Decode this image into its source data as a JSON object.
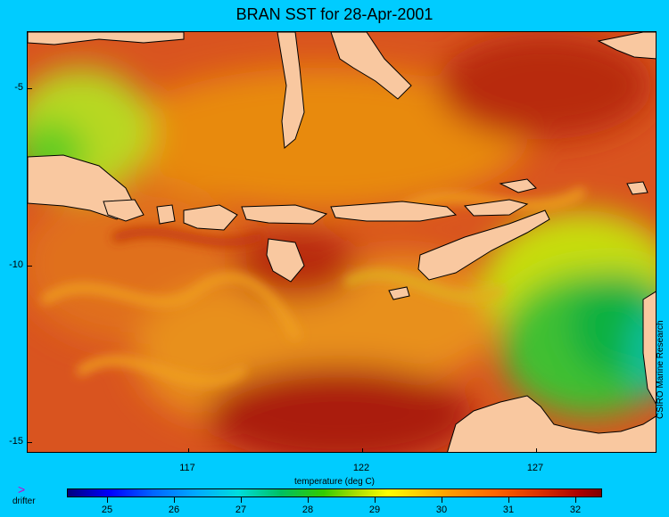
{
  "title": "BRAN SST for 28-Apr-2001",
  "map": {
    "x_axis_label": "temperature (deg C)",
    "lon_ticks": [
      "117",
      "122",
      "127"
    ],
    "lat_ticks": [
      "-5",
      "-10",
      "-15"
    ],
    "credit": "CSIRO Marine Research",
    "land_color": "#f9c8a0",
    "legend": {
      "marker": ">",
      "label": "drifter",
      "marker_color": "#cc00cc"
    }
  },
  "colorbar": {
    "ticks": [
      "25",
      "26",
      "27",
      "28",
      "29",
      "30",
      "31",
      "32"
    ]
  }
}
